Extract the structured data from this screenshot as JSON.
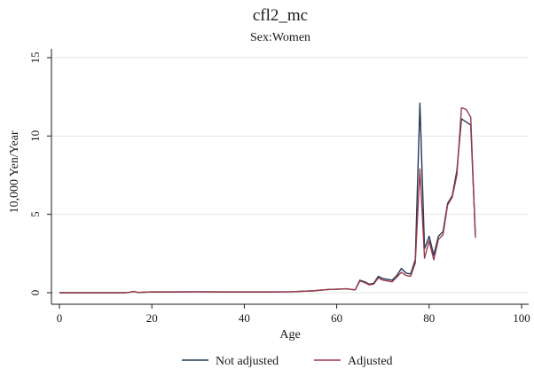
{
  "chart_data": {
    "type": "line",
    "title": "cfl2_mc",
    "subtitle": "Sex:Women",
    "xlabel": "Age",
    "ylabel": "10,000 Yen/Year",
    "xlim": [
      0,
      100
    ],
    "ylim": [
      0,
      15
    ],
    "xticks": [
      0,
      20,
      40,
      60,
      80,
      100
    ],
    "yticks": [
      0,
      5,
      10,
      15
    ],
    "grid": true,
    "legend_position": "bottom",
    "series": [
      {
        "name": "Not adjusted",
        "color": "#1f3b57",
        "points": [
          [
            0,
            0
          ],
          [
            5,
            0
          ],
          [
            10,
            0
          ],
          [
            14,
            0
          ],
          [
            15,
            0.02
          ],
          [
            16,
            0.08
          ],
          [
            17,
            0.02
          ],
          [
            20,
            0.05
          ],
          [
            25,
            0.05
          ],
          [
            30,
            0.06
          ],
          [
            35,
            0.05
          ],
          [
            40,
            0.05
          ],
          [
            45,
            0.05
          ],
          [
            50,
            0.06
          ],
          [
            55,
            0.12
          ],
          [
            58,
            0.2
          ],
          [
            60,
            0.22
          ],
          [
            62,
            0.25
          ],
          [
            64,
            0.18
          ],
          [
            65,
            0.8
          ],
          [
            66,
            0.7
          ],
          [
            67,
            0.55
          ],
          [
            68,
            0.6
          ],
          [
            69,
            1.05
          ],
          [
            70,
            0.9
          ],
          [
            71,
            0.85
          ],
          [
            72,
            0.8
          ],
          [
            73,
            1.1
          ],
          [
            74,
            1.55
          ],
          [
            75,
            1.25
          ],
          [
            76,
            1.2
          ],
          [
            77,
            2.1
          ],
          [
            78,
            12.1
          ],
          [
            79,
            2.8
          ],
          [
            80,
            3.6
          ],
          [
            81,
            2.4
          ],
          [
            82,
            3.6
          ],
          [
            83,
            3.9
          ],
          [
            84,
            5.7
          ],
          [
            85,
            6.2
          ],
          [
            86,
            7.8
          ],
          [
            87,
            11.1
          ],
          [
            88,
            10.9
          ],
          [
            89,
            10.7
          ],
          [
            90,
            3.7
          ]
        ]
      },
      {
        "name": "Adjusted",
        "color": "#9b3a4a",
        "points": [
          [
            0,
            0
          ],
          [
            5,
            0
          ],
          [
            10,
            0
          ],
          [
            14,
            0
          ],
          [
            15,
            0.02
          ],
          [
            16,
            0.08
          ],
          [
            17,
            0.02
          ],
          [
            20,
            0.05
          ],
          [
            25,
            0.05
          ],
          [
            30,
            0.06
          ],
          [
            35,
            0.05
          ],
          [
            40,
            0.05
          ],
          [
            45,
            0.05
          ],
          [
            50,
            0.06
          ],
          [
            55,
            0.12
          ],
          [
            58,
            0.2
          ],
          [
            60,
            0.22
          ],
          [
            62,
            0.25
          ],
          [
            64,
            0.18
          ],
          [
            65,
            0.75
          ],
          [
            66,
            0.65
          ],
          [
            67,
            0.5
          ],
          [
            68,
            0.55
          ],
          [
            69,
            0.95
          ],
          [
            70,
            0.8
          ],
          [
            71,
            0.75
          ],
          [
            72,
            0.7
          ],
          [
            73,
            1.0
          ],
          [
            74,
            1.3
          ],
          [
            75,
            1.1
          ],
          [
            76,
            1.05
          ],
          [
            77,
            1.9
          ],
          [
            78,
            7.9
          ],
          [
            79,
            2.2
          ],
          [
            80,
            3.3
          ],
          [
            81,
            2.1
          ],
          [
            82,
            3.4
          ],
          [
            83,
            3.7
          ],
          [
            84,
            5.6
          ],
          [
            85,
            6.1
          ],
          [
            86,
            7.5
          ],
          [
            87,
            11.8
          ],
          [
            88,
            11.7
          ],
          [
            89,
            11.2
          ],
          [
            90,
            3.5
          ]
        ]
      }
    ]
  }
}
